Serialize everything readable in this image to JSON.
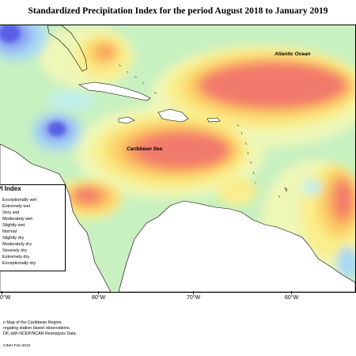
{
  "title": "Standardized Precipitation Index for the period August 2018 to January 2019",
  "map": {
    "labels": {
      "atlantic": "Atlantic Ocean",
      "caribbean": "Caribbean Sea"
    },
    "longitude_ticks": [
      "0°W",
      "80°W",
      "70°W",
      "60°W"
    ]
  },
  "legend": {
    "title": "PI Index",
    "categories": [
      {
        "label": "Exceptionally wet",
        "color": "#5a5ee6"
      },
      {
        "label": "Extremely wet",
        "color": "#8aa0f2"
      },
      {
        "label": "Very wet",
        "color": "#a8d8f2"
      },
      {
        "label": "Moderately wet",
        "color": "#bff0ec"
      },
      {
        "label": "Slightly wet",
        "color": "#d2f4c6"
      },
      {
        "label": "Normal",
        "color": "#eef7b8"
      },
      {
        "label": "Slightly dry",
        "color": "#f9ee8c"
      },
      {
        "label": "Moderately dry",
        "color": "#fbd36a"
      },
      {
        "label": "Severely dry",
        "color": "#f9a25e"
      },
      {
        "label": "Extremely dry",
        "color": "#f27a6c"
      },
      {
        "label": "Exceptionally dry",
        "color": "#e8575f"
      }
    ]
  },
  "footnote": {
    "lines": [
      "n Map of the Caribbean Region",
      "regating station based observations,",
      "DF, with NCEP/NCAR Reanalysis Data."
    ],
    "credit": "CIMH Feb-2019"
  }
}
